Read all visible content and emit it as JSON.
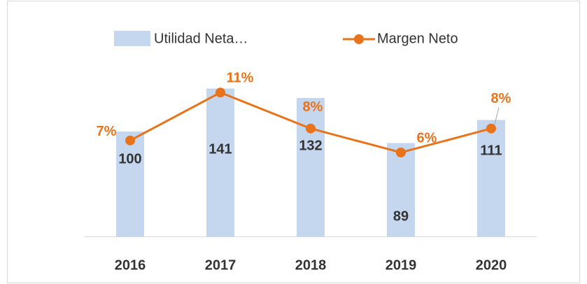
{
  "chart_data": {
    "type": "bar+line",
    "categories": [
      "2016",
      "2017",
      "2018",
      "2019",
      "2020"
    ],
    "series": [
      {
        "name": "Utilidad Neta…",
        "type": "bar",
        "color": "#c5d7ef",
        "values": [
          100,
          141,
          132,
          89,
          111
        ]
      },
      {
        "name": "Margen Neto",
        "type": "line",
        "axis": "y2",
        "color": "#e8731a",
        "values": [
          7,
          11,
          8,
          6,
          8
        ],
        "value_labels": [
          "7%",
          "11%",
          "8%",
          "6%",
          "8%"
        ]
      }
    ],
    "ylim": [
      0,
      160
    ],
    "y2lim": [
      -1,
      13
    ],
    "legend": "top"
  }
}
